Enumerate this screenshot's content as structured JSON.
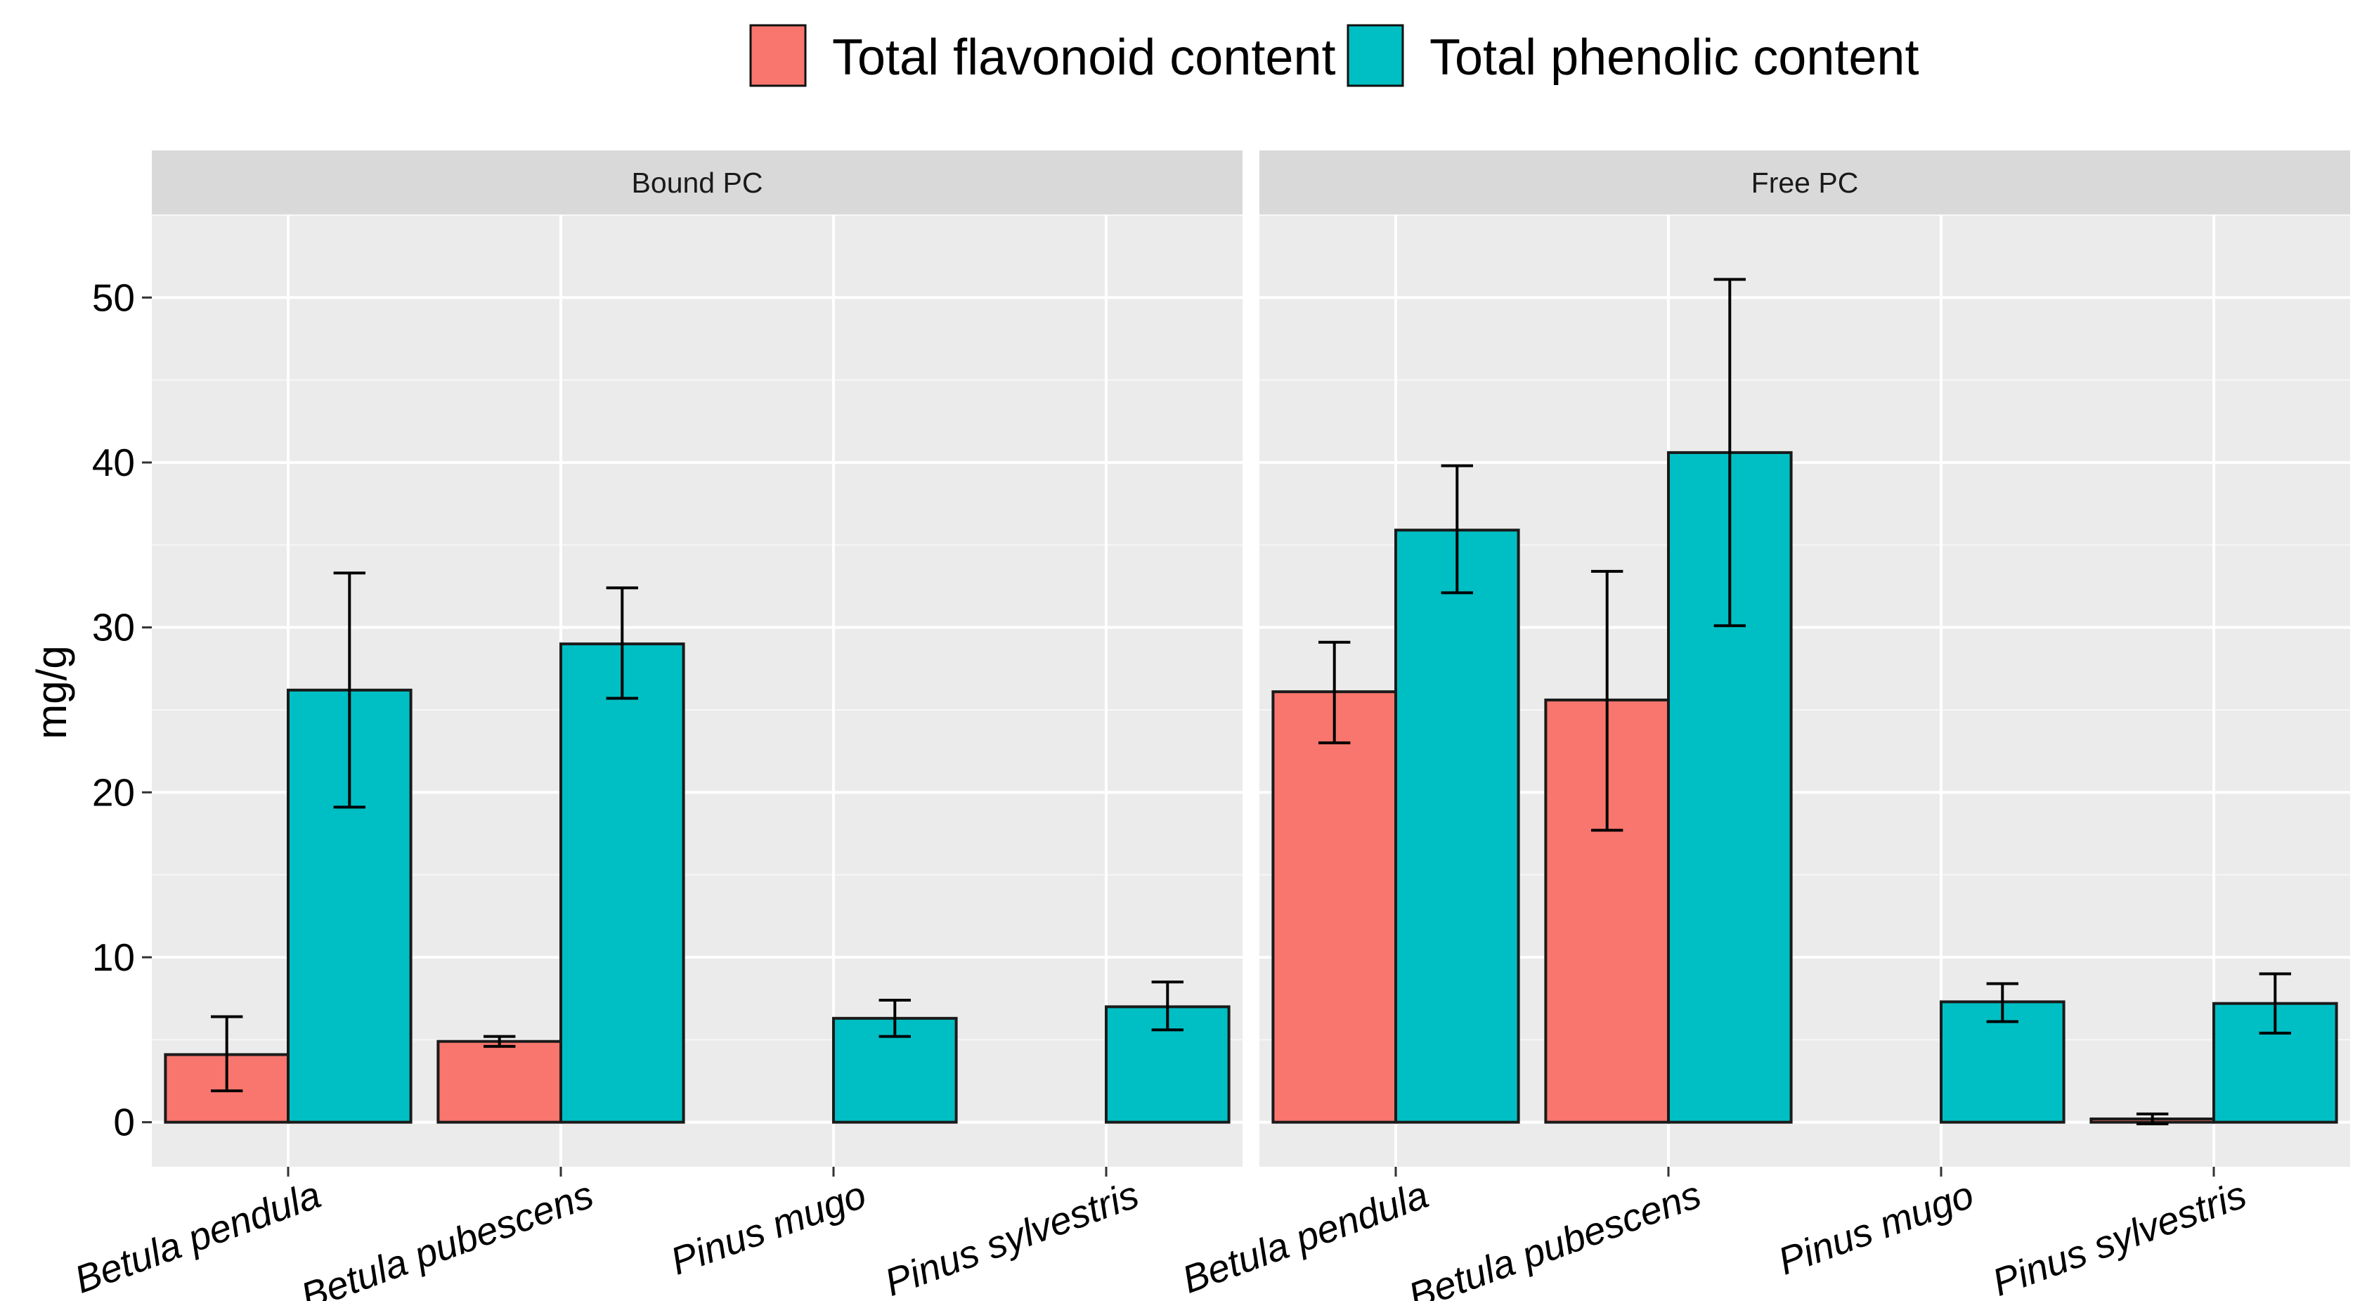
{
  "chart_data": {
    "type": "bar",
    "ylabel": "mg/g",
    "xlabel": "",
    "ylim": [
      -2.7,
      55
    ],
    "yticks": [
      0,
      10,
      20,
      30,
      40,
      50
    ],
    "ytick_labels": [
      "0",
      "10",
      "20",
      "30",
      "40",
      "50"
    ],
    "categories": [
      "Betula pendula",
      "Betula pubescens",
      "Pinus mugo",
      "Pinus sylvestris"
    ],
    "legend": {
      "position": "top",
      "entries": [
        {
          "name": "Total flavonoid content",
          "color": "#F8766D"
        },
        {
          "name": "Total phenolic content",
          "color": "#00BFC4"
        }
      ]
    },
    "panels": [
      {
        "title": "Bound PC",
        "series": [
          {
            "name": "Total flavonoid content",
            "values": [
              4.1,
              4.9,
              0.0,
              0.0
            ],
            "error_low": [
              1.9,
              4.6,
              0.0,
              0.0
            ],
            "error_high": [
              6.4,
              5.2,
              0.0,
              0.0
            ]
          },
          {
            "name": "Total phenolic content",
            "values": [
              26.2,
              29.0,
              6.3,
              7.0
            ],
            "error_low": [
              19.1,
              25.7,
              5.2,
              5.6
            ],
            "error_high": [
              33.3,
              32.4,
              7.4,
              8.5
            ]
          }
        ]
      },
      {
        "title": "Free PC",
        "series": [
          {
            "name": "Total flavonoid content",
            "values": [
              26.1,
              25.6,
              0.0,
              0.2
            ],
            "error_low": [
              23.0,
              17.7,
              0.0,
              -0.1
            ],
            "error_high": [
              29.1,
              33.4,
              0.0,
              0.5
            ]
          },
          {
            "name": "Total phenolic content",
            "values": [
              35.9,
              40.6,
              7.3,
              7.2
            ],
            "error_low": [
              32.1,
              30.1,
              6.1,
              5.4
            ],
            "error_high": [
              39.8,
              51.1,
              8.4,
              9.0
            ]
          }
        ]
      }
    ]
  }
}
